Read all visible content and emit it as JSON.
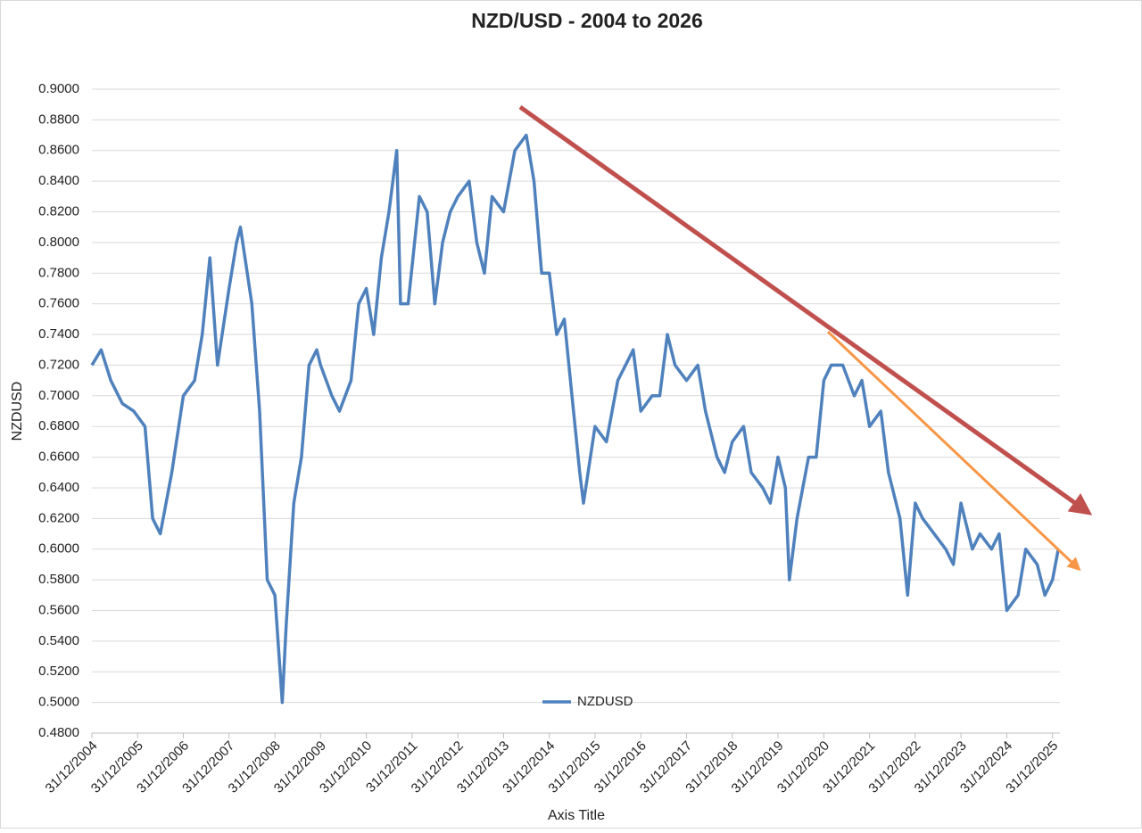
{
  "chart_data": {
    "type": "line",
    "title": "NZD/USD - 2004 to 2026",
    "x_label": "Axis Title",
    "y_label": "NZDUSD",
    "x": [
      "2004-12-31",
      "2005-03-15",
      "2005-05-31",
      "2005-08-31",
      "2005-11-30",
      "2006-02-28",
      "2006-04-30",
      "2006-06-30",
      "2006-09-30",
      "2006-12-31",
      "2007-03-31",
      "2007-05-31",
      "2007-07-31",
      "2007-09-30",
      "2007-12-31",
      "2008-02-29",
      "2008-03-31",
      "2008-06-30",
      "2008-08-31",
      "2008-10-31",
      "2008-12-31",
      "2009-02-28",
      "2009-03-31",
      "2009-05-31",
      "2009-07-31",
      "2009-09-30",
      "2009-11-30",
      "2009-12-31",
      "2010-03-31",
      "2010-05-31",
      "2010-08-31",
      "2010-10-31",
      "2010-12-31",
      "2011-02-28",
      "2011-04-30",
      "2011-06-30",
      "2011-08-31",
      "2011-09-30",
      "2011-11-30",
      "2012-02-28",
      "2012-04-30",
      "2012-06-30",
      "2012-08-31",
      "2012-10-31",
      "2012-12-31",
      "2013-03-31",
      "2013-05-31",
      "2013-07-31",
      "2013-09-30",
      "2013-12-31",
      "2014-03-31",
      "2014-06-30",
      "2014-08-31",
      "2014-10-31",
      "2014-12-31",
      "2015-02-28",
      "2015-04-30",
      "2015-06-30",
      "2015-08-31",
      "2015-09-30",
      "2015-12-31",
      "2016-03-31",
      "2016-06-30",
      "2016-08-31",
      "2016-10-31",
      "2016-12-31",
      "2017-03-31",
      "2017-05-31",
      "2017-07-31",
      "2017-09-30",
      "2017-12-31",
      "2018-03-31",
      "2018-05-31",
      "2018-08-31",
      "2018-10-31",
      "2018-12-31",
      "2019-03-31",
      "2019-05-31",
      "2019-08-31",
      "2019-10-31",
      "2019-12-31",
      "2020-02-28",
      "2020-03-31",
      "2020-05-31",
      "2020-08-31",
      "2020-10-31",
      "2020-12-31",
      "2021-02-28",
      "2021-05-31",
      "2021-08-31",
      "2021-10-31",
      "2021-12-31",
      "2022-03-31",
      "2022-05-31",
      "2022-08-31",
      "2022-10-31",
      "2022-12-31",
      "2023-02-28",
      "2023-05-31",
      "2023-08-31",
      "2023-10-31",
      "2023-12-31",
      "2024-03-31",
      "2024-05-31",
      "2024-08-31",
      "2024-10-31",
      "2024-12-31",
      "2025-03-31",
      "2025-05-31",
      "2025-08-31",
      "2025-10-31",
      "2025-12-31",
      "2026-02-15"
    ],
    "series": [
      {
        "name": "NZDUSD",
        "color": "#4f81bd",
        "values": [
          0.72,
          0.73,
          0.71,
          0.695,
          0.69,
          0.68,
          0.62,
          0.61,
          0.65,
          0.7,
          0.71,
          0.74,
          0.79,
          0.72,
          0.77,
          0.8,
          0.81,
          0.76,
          0.69,
          0.58,
          0.57,
          0.5,
          0.55,
          0.63,
          0.66,
          0.72,
          0.73,
          0.72,
          0.7,
          0.69,
          0.71,
          0.76,
          0.77,
          0.74,
          0.79,
          0.82,
          0.86,
          0.76,
          0.76,
          0.83,
          0.82,
          0.76,
          0.8,
          0.82,
          0.83,
          0.84,
          0.8,
          0.78,
          0.83,
          0.82,
          0.86,
          0.87,
          0.84,
          0.78,
          0.78,
          0.74,
          0.75,
          0.7,
          0.65,
          0.63,
          0.68,
          0.67,
          0.71,
          0.72,
          0.73,
          0.69,
          0.7,
          0.7,
          0.74,
          0.72,
          0.71,
          0.72,
          0.69,
          0.66,
          0.65,
          0.67,
          0.68,
          0.65,
          0.64,
          0.63,
          0.66,
          0.64,
          0.58,
          0.62,
          0.66,
          0.66,
          0.71,
          0.72,
          0.72,
          0.7,
          0.71,
          0.68,
          0.69,
          0.65,
          0.62,
          0.57,
          0.63,
          0.62,
          0.61,
          0.6,
          0.59,
          0.63,
          0.6,
          0.61,
          0.6,
          0.61,
          0.56,
          0.57,
          0.6,
          0.59,
          0.57,
          0.58,
          0.6
        ]
      }
    ],
    "xlim": [
      "2004-12-31",
      "2026-02-28"
    ],
    "xticks": [
      {
        "value": "2004-12-31",
        "label": "31/12/2004"
      },
      {
        "value": "2005-12-31",
        "label": "31/12/2005"
      },
      {
        "value": "2006-12-31",
        "label": "31/12/2006"
      },
      {
        "value": "2007-12-31",
        "label": "31/12/2007"
      },
      {
        "value": "2008-12-31",
        "label": "31/12/2008"
      },
      {
        "value": "2009-12-31",
        "label": "31/12/2009"
      },
      {
        "value": "2010-12-31",
        "label": "31/12/2010"
      },
      {
        "value": "2011-12-31",
        "label": "31/12/2011"
      },
      {
        "value": "2012-12-31",
        "label": "31/12/2012"
      },
      {
        "value": "2013-12-31",
        "label": "31/12/2013"
      },
      {
        "value": "2014-12-31",
        "label": "31/12/2014"
      },
      {
        "value": "2015-12-31",
        "label": "31/12/2015"
      },
      {
        "value": "2016-12-31",
        "label": "31/12/2016"
      },
      {
        "value": "2017-12-31",
        "label": "31/12/2017"
      },
      {
        "value": "2018-12-31",
        "label": "31/12/2018"
      },
      {
        "value": "2019-12-31",
        "label": "31/12/2019"
      },
      {
        "value": "2020-12-31",
        "label": "31/12/2020"
      },
      {
        "value": "2021-12-31",
        "label": "31/12/2021"
      },
      {
        "value": "2022-12-31",
        "label": "31/12/2022"
      },
      {
        "value": "2023-12-31",
        "label": "31/12/2023"
      },
      {
        "value": "2024-12-31",
        "label": "31/12/2024"
      },
      {
        "value": "2025-12-31",
        "label": "31/12/2025"
      }
    ],
    "ylim": [
      0.48,
      0.9
    ],
    "yticks": [
      {
        "value": 0.48,
        "label": "0.4800"
      },
      {
        "value": 0.5,
        "label": "0.5000"
      },
      {
        "value": 0.52,
        "label": "0.5200"
      },
      {
        "value": 0.54,
        "label": "0.5400"
      },
      {
        "value": 0.56,
        "label": "0.5600"
      },
      {
        "value": 0.58,
        "label": "0.5800"
      },
      {
        "value": 0.6,
        "label": "0.6000"
      },
      {
        "value": 0.62,
        "label": "0.6200"
      },
      {
        "value": 0.64,
        "label": "0.6400"
      },
      {
        "value": 0.66,
        "label": "0.6600"
      },
      {
        "value": 0.68,
        "label": "0.6800"
      },
      {
        "value": 0.7,
        "label": "0.7000"
      },
      {
        "value": 0.72,
        "label": "0.7200"
      },
      {
        "value": 0.74,
        "label": "0.7400"
      },
      {
        "value": 0.76,
        "label": "0.7600"
      },
      {
        "value": 0.78,
        "label": "0.7800"
      },
      {
        "value": 0.8,
        "label": "0.8000"
      },
      {
        "value": 0.82,
        "label": "0.8200"
      },
      {
        "value": 0.84,
        "label": "0.8400"
      },
      {
        "value": 0.86,
        "label": "0.8600"
      },
      {
        "value": 0.88,
        "label": "0.8800"
      },
      {
        "value": 0.9,
        "label": "0.9000"
      }
    ],
    "grid": true,
    "legend": "bottom"
  }
}
